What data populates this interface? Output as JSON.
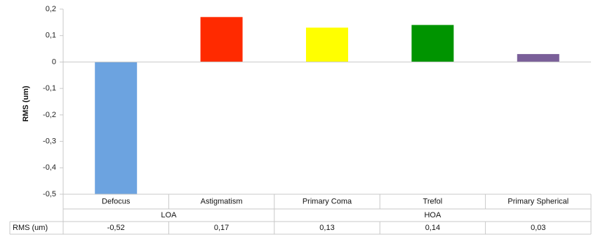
{
  "chart_data": {
    "type": "bar",
    "ylabel": "RMS (um)",
    "ylim": [
      -0.5,
      0.2
    ],
    "y_ticks": [
      "0,2",
      "0,1",
      "0",
      "-0,1",
      "-0,2",
      "-0,3",
      "-0,4",
      "-0,5"
    ],
    "categories": [
      "Defocus",
      "Astigmatism",
      "Primary Coma",
      "Trefol",
      "Primary Spherical"
    ],
    "groups": [
      {
        "label": "LOA",
        "span": [
          0,
          1
        ]
      },
      {
        "label": "HOA",
        "span": [
          2,
          4
        ]
      }
    ],
    "values": [
      -0.52,
      0.17,
      0.13,
      0.14,
      0.03
    ],
    "colors": [
      "#6ca3e0",
      "#ff2a00",
      "#ffff00",
      "#009400",
      "#7a5f99"
    ],
    "grid": false,
    "legend": "none",
    "table": {
      "row_label": "RMS (um)",
      "values": [
        "-0,52",
        "0,17",
        "0,13",
        "0,14",
        "0,03"
      ]
    }
  }
}
